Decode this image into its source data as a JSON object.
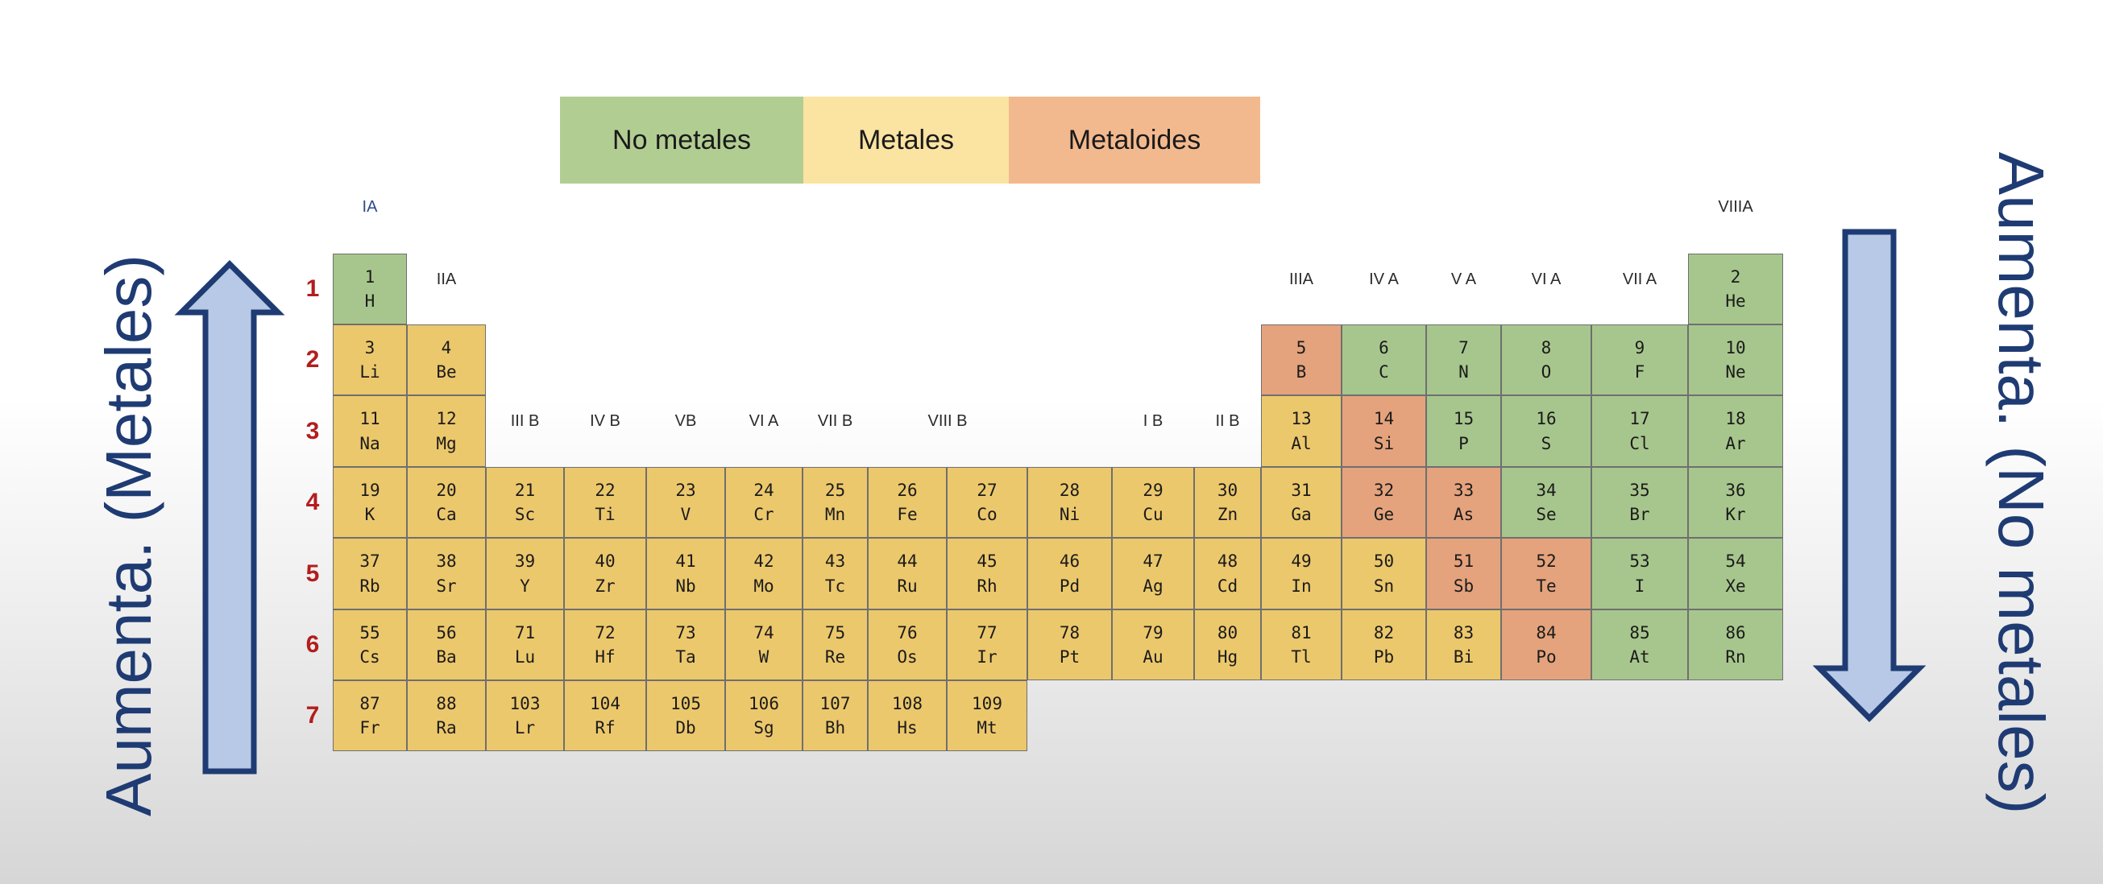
{
  "legend": [
    {
      "label": "No metales",
      "color": "#b2cd92"
    },
    {
      "label": "Metales",
      "color": "#fbe3a2"
    },
    {
      "label": "Metaloides",
      "color": "#f3b98e"
    }
  ],
  "left_label": "Aumenta. (Metales)",
  "right_label": "Aumenta. (No metales)",
  "arrow_color": "#b7c9e6",
  "arrow_stroke": "#1f3b73",
  "category_colors": {
    "nonmetal": "#a7c68d",
    "metal": "#ecc86c",
    "metalloid": "#e4a37d"
  },
  "periods": [
    "1",
    "2",
    "3",
    "4",
    "5",
    "6",
    "7"
  ],
  "groups": [
    {
      "label": "IA",
      "col": 1,
      "row": 0,
      "color": "blue"
    },
    {
      "label": "IIA",
      "col": 2,
      "row": 1
    },
    {
      "label": "III B",
      "col": 3,
      "row": 3
    },
    {
      "label": "IV B",
      "col": 4,
      "row": 3
    },
    {
      "label": "VB",
      "col": 5,
      "row": 3
    },
    {
      "label": "VI A",
      "col": 6,
      "row": 3
    },
    {
      "label": "VII B",
      "col": 7,
      "row": 3
    },
    {
      "label": "VIII B",
      "col": 8.5,
      "row": 3
    },
    {
      "label": "I B",
      "col": 11,
      "row": 3
    },
    {
      "label": "II B",
      "col": 12,
      "row": 3
    },
    {
      "label": "IIIA",
      "col": 13,
      "row": 1
    },
    {
      "label": "IV A",
      "col": 14,
      "row": 1
    },
    {
      "label": "V A",
      "col": 15,
      "row": 1
    },
    {
      "label": "VI A",
      "col": 16,
      "row": 1
    },
    {
      "label": "VII A",
      "col": 17,
      "row": 1
    },
    {
      "label": "VIIIA",
      "col": 18,
      "row": 0
    }
  ],
  "elements": [
    {
      "num": "1",
      "sym": "H",
      "row": 1,
      "col": 1,
      "cat": "nonmetal"
    },
    {
      "num": "2",
      "sym": "He",
      "row": 1,
      "col": 18,
      "cat": "nonmetal"
    },
    {
      "num": "3",
      "sym": "Li",
      "row": 2,
      "col": 1,
      "cat": "metal"
    },
    {
      "num": "4",
      "sym": "Be",
      "row": 2,
      "col": 2,
      "cat": "metal"
    },
    {
      "num": "5",
      "sym": "B",
      "row": 2,
      "col": 13,
      "cat": "metalloid"
    },
    {
      "num": "6",
      "sym": "C",
      "row": 2,
      "col": 14,
      "cat": "nonmetal"
    },
    {
      "num": "7",
      "sym": "N",
      "row": 2,
      "col": 15,
      "cat": "nonmetal"
    },
    {
      "num": "8",
      "sym": "O",
      "row": 2,
      "col": 16,
      "cat": "nonmetal"
    },
    {
      "num": "9",
      "sym": "F",
      "row": 2,
      "col": 17,
      "cat": "nonmetal"
    },
    {
      "num": "10",
      "sym": "Ne",
      "row": 2,
      "col": 18,
      "cat": "nonmetal"
    },
    {
      "num": "11",
      "sym": "Na",
      "row": 3,
      "col": 1,
      "cat": "metal"
    },
    {
      "num": "12",
      "sym": "Mg",
      "row": 3,
      "col": 2,
      "cat": "metal"
    },
    {
      "num": "13",
      "sym": "Al",
      "row": 3,
      "col": 13,
      "cat": "metal"
    },
    {
      "num": "14",
      "sym": "Si",
      "row": 3,
      "col": 14,
      "cat": "metalloid"
    },
    {
      "num": "15",
      "sym": "P",
      "row": 3,
      "col": 15,
      "cat": "nonmetal"
    },
    {
      "num": "16",
      "sym": "S",
      "row": 3,
      "col": 16,
      "cat": "nonmetal"
    },
    {
      "num": "17",
      "sym": "Cl",
      "row": 3,
      "col": 17,
      "cat": "nonmetal"
    },
    {
      "num": "18",
      "sym": "Ar",
      "row": 3,
      "col": 18,
      "cat": "nonmetal"
    },
    {
      "num": "19",
      "sym": "K",
      "row": 4,
      "col": 1,
      "cat": "metal"
    },
    {
      "num": "20",
      "sym": "Ca",
      "row": 4,
      "col": 2,
      "cat": "metal"
    },
    {
      "num": "21",
      "sym": "Sc",
      "row": 4,
      "col": 3,
      "cat": "metal"
    },
    {
      "num": "22",
      "sym": "Ti",
      "row": 4,
      "col": 4,
      "cat": "metal"
    },
    {
      "num": "23",
      "sym": "V",
      "row": 4,
      "col": 5,
      "cat": "metal"
    },
    {
      "num": "24",
      "sym": "Cr",
      "row": 4,
      "col": 6,
      "cat": "metal"
    },
    {
      "num": "25",
      "sym": "Mn",
      "row": 4,
      "col": 7,
      "cat": "metal"
    },
    {
      "num": "26",
      "sym": "Fe",
      "row": 4,
      "col": 8,
      "cat": "metal"
    },
    {
      "num": "27",
      "sym": "Co",
      "row": 4,
      "col": 9,
      "cat": "metal"
    },
    {
      "num": "28",
      "sym": "Ni",
      "row": 4,
      "col": 10,
      "cat": "metal"
    },
    {
      "num": "29",
      "sym": "Cu",
      "row": 4,
      "col": 11,
      "cat": "metal"
    },
    {
      "num": "30",
      "sym": "Zn",
      "row": 4,
      "col": 12,
      "cat": "metal"
    },
    {
      "num": "31",
      "sym": "Ga",
      "row": 4,
      "col": 13,
      "cat": "metal"
    },
    {
      "num": "32",
      "sym": "Ge",
      "row": 4,
      "col": 14,
      "cat": "metalloid"
    },
    {
      "num": "33",
      "sym": "As",
      "row": 4,
      "col": 15,
      "cat": "metalloid"
    },
    {
      "num": "34",
      "sym": "Se",
      "row": 4,
      "col": 16,
      "cat": "nonmetal"
    },
    {
      "num": "35",
      "sym": "Br",
      "row": 4,
      "col": 17,
      "cat": "nonmetal"
    },
    {
      "num": "36",
      "sym": "Kr",
      "row": 4,
      "col": 18,
      "cat": "nonmetal"
    },
    {
      "num": "37",
      "sym": "Rb",
      "row": 5,
      "col": 1,
      "cat": "metal"
    },
    {
      "num": "38",
      "sym": "Sr",
      "row": 5,
      "col": 2,
      "cat": "metal"
    },
    {
      "num": "39",
      "sym": "Y",
      "row": 5,
      "col": 3,
      "cat": "metal"
    },
    {
      "num": "40",
      "sym": "Zr",
      "row": 5,
      "col": 4,
      "cat": "metal"
    },
    {
      "num": "41",
      "sym": "Nb",
      "row": 5,
      "col": 5,
      "cat": "metal"
    },
    {
      "num": "42",
      "sym": "Mo",
      "row": 5,
      "col": 6,
      "cat": "metal"
    },
    {
      "num": "43",
      "sym": "Tc",
      "row": 5,
      "col": 7,
      "cat": "metal"
    },
    {
      "num": "44",
      "sym": "Ru",
      "row": 5,
      "col": 8,
      "cat": "metal"
    },
    {
      "num": "45",
      "sym": "Rh",
      "row": 5,
      "col": 9,
      "cat": "metal"
    },
    {
      "num": "46",
      "sym": "Pd",
      "row": 5,
      "col": 10,
      "cat": "metal"
    },
    {
      "num": "47",
      "sym": "Ag",
      "row": 5,
      "col": 11,
      "cat": "metal"
    },
    {
      "num": "48",
      "sym": "Cd",
      "row": 5,
      "col": 12,
      "cat": "metal"
    },
    {
      "num": "49",
      "sym": "In",
      "row": 5,
      "col": 13,
      "cat": "metal"
    },
    {
      "num": "50",
      "sym": "Sn",
      "row": 5,
      "col": 14,
      "cat": "metal"
    },
    {
      "num": "51",
      "sym": "Sb",
      "row": 5,
      "col": 15,
      "cat": "metalloid"
    },
    {
      "num": "52",
      "sym": "Te",
      "row": 5,
      "col": 16,
      "cat": "metalloid"
    },
    {
      "num": "53",
      "sym": "I",
      "row": 5,
      "col": 17,
      "cat": "nonmetal"
    },
    {
      "num": "54",
      "sym": "Xe",
      "row": 5,
      "col": 18,
      "cat": "nonmetal"
    },
    {
      "num": "55",
      "sym": "Cs",
      "row": 6,
      "col": 1,
      "cat": "metal"
    },
    {
      "num": "56",
      "sym": "Ba",
      "row": 6,
      "col": 2,
      "cat": "metal"
    },
    {
      "num": "71",
      "sym": "Lu",
      "row": 6,
      "col": 3,
      "cat": "metal"
    },
    {
      "num": "72",
      "sym": "Hf",
      "row": 6,
      "col": 4,
      "cat": "metal"
    },
    {
      "num": "73",
      "sym": "Ta",
      "row": 6,
      "col": 5,
      "cat": "metal"
    },
    {
      "num": "74",
      "sym": "W",
      "row": 6,
      "col": 6,
      "cat": "metal"
    },
    {
      "num": "75",
      "sym": "Re",
      "row": 6,
      "col": 7,
      "cat": "metal"
    },
    {
      "num": "76",
      "sym": "Os",
      "row": 6,
      "col": 8,
      "cat": "metal"
    },
    {
      "num": "77",
      "sym": "Ir",
      "row": 6,
      "col": 9,
      "cat": "metal"
    },
    {
      "num": "78",
      "sym": "Pt",
      "row": 6,
      "col": 10,
      "cat": "metal"
    },
    {
      "num": "79",
      "sym": "Au",
      "row": 6,
      "col": 11,
      "cat": "metal"
    },
    {
      "num": "80",
      "sym": "Hg",
      "row": 6,
      "col": 12,
      "cat": "metal"
    },
    {
      "num": "81",
      "sym": "Tl",
      "row": 6,
      "col": 13,
      "cat": "metal"
    },
    {
      "num": "82",
      "sym": "Pb",
      "row": 6,
      "col": 14,
      "cat": "metal"
    },
    {
      "num": "83",
      "sym": "Bi",
      "row": 6,
      "col": 15,
      "cat": "metal"
    },
    {
      "num": "84",
      "sym": "Po",
      "row": 6,
      "col": 16,
      "cat": "metalloid"
    },
    {
      "num": "85",
      "sym": "At",
      "row": 6,
      "col": 17,
      "cat": "nonmetal"
    },
    {
      "num": "86",
      "sym": "Rn",
      "row": 6,
      "col": 18,
      "cat": "nonmetal"
    },
    {
      "num": "87",
      "sym": "Fr",
      "row": 7,
      "col": 1,
      "cat": "metal"
    },
    {
      "num": "88",
      "sym": "Ra",
      "row": 7,
      "col": 2,
      "cat": "metal"
    },
    {
      "num": "103",
      "sym": "Lr",
      "row": 7,
      "col": 3,
      "cat": "metal"
    },
    {
      "num": "104",
      "sym": "Rf",
      "row": 7,
      "col": 4,
      "cat": "metal"
    },
    {
      "num": "105",
      "sym": "Db",
      "row": 7,
      "col": 5,
      "cat": "metal"
    },
    {
      "num": "106",
      "sym": "Sg",
      "row": 7,
      "col": 6,
      "cat": "metal"
    },
    {
      "num": "107",
      "sym": "Bh",
      "row": 7,
      "col": 7,
      "cat": "metal"
    },
    {
      "num": "108",
      "sym": "Hs",
      "row": 7,
      "col": 8,
      "cat": "metal"
    },
    {
      "num": "109",
      "sym": "Mt",
      "row": 7,
      "col": 9,
      "cat": "metal"
    }
  ]
}
